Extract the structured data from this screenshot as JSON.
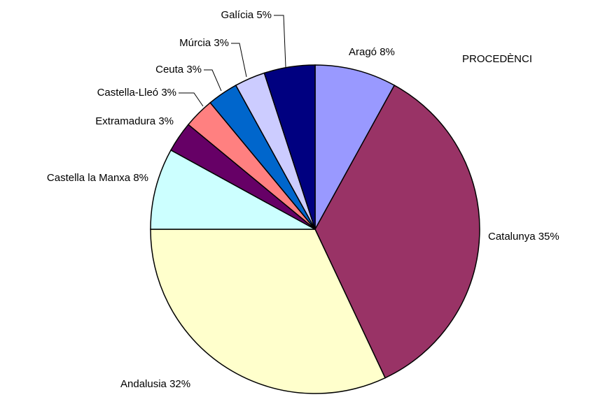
{
  "chart_data": {
    "type": "pie",
    "title": "PROCEDÈNCI",
    "categories": [
      "Aragó",
      "Catalunya",
      "Andalusia",
      "Castella la Manxa",
      "Extramadura",
      "Castella-Lleó",
      "Ceuta",
      "Múrcia",
      "Galícia"
    ],
    "values": [
      8,
      35,
      32,
      8,
      3,
      3,
      3,
      3,
      5
    ],
    "value_labels": [
      "8%",
      "35%",
      "32%",
      "8%",
      "3%",
      "3%",
      "3%",
      "3%",
      "5%"
    ],
    "colors": [
      "#9999ff",
      "#993366",
      "#ffffcc",
      "#ccffff",
      "#660066",
      "#ff8080",
      "#0066cc",
      "#ccccff",
      "#000080"
    ]
  }
}
